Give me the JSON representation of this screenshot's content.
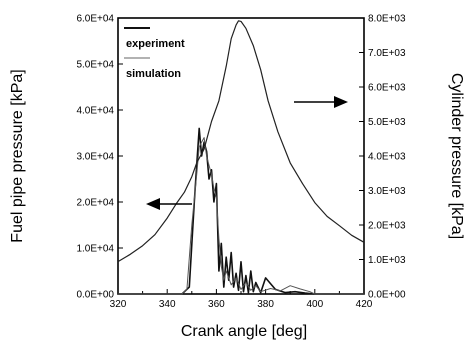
{
  "chart_data": {
    "type": "line",
    "xlabel": "Crank angle [deg]",
    "ylabel_left": "Fuel pipe pressure [kPa]",
    "ylabel_right": "Cylinder pressure [kPa]",
    "xlim": [
      320,
      420
    ],
    "ylim_left": [
      0,
      60000
    ],
    "ylim_right": [
      0,
      8000
    ],
    "x_ticks": [
      "320",
      "340",
      "360",
      "380",
      "400",
      "420"
    ],
    "y_ticks_left": [
      "0.0E+00",
      "1.0E+04",
      "2.0E+04",
      "3.0E+04",
      "4.0E+04",
      "5.0E+04",
      "6.0E+04"
    ],
    "y_ticks_right": [
      "0.0E+00",
      "1.0E+03",
      "2.0E+03",
      "3.0E+03",
      "4.0E+03",
      "5.0E+03",
      "6.0E+03",
      "7.0E+03",
      "8.0E+03"
    ],
    "grid": false,
    "legend_position": "top-left",
    "legend": [
      "experiment",
      "simulation"
    ],
    "series": [
      {
        "name": "experiment",
        "axis": "left",
        "x": [
          320,
          346,
          349,
          351,
          352,
          353,
          354,
          355,
          356,
          357,
          358,
          359,
          360,
          361,
          362,
          363,
          364,
          365,
          366,
          367,
          368,
          369,
          370,
          371,
          372,
          373,
          374,
          375,
          376,
          378,
          380,
          384,
          388,
          392,
          396,
          400,
          420
        ],
        "y": [
          0,
          0,
          1500,
          20000,
          28000,
          36000,
          30000,
          33000,
          31000,
          25000,
          27000,
          20000,
          24000,
          5000,
          11000,
          1500,
          8000,
          3000,
          9000,
          1500,
          4500,
          800,
          7000,
          500,
          4000,
          300,
          5000,
          500,
          2500,
          300,
          3500,
          1000,
          300,
          500,
          200,
          0,
          0
        ]
      },
      {
        "name": "simulation",
        "axis": "left",
        "x": [
          320,
          346,
          348,
          350,
          352,
          353,
          354,
          355,
          356,
          357,
          358,
          359,
          360,
          361,
          362,
          363,
          364,
          366,
          368,
          370,
          372,
          374,
          376,
          378,
          382,
          386,
          390,
          394,
          398,
          400,
          420
        ],
        "y": [
          0,
          0,
          1000,
          15000,
          26000,
          32000,
          33000,
          34000,
          30000,
          28000,
          26000,
          23000,
          21000,
          12000,
          6000,
          3000,
          5000,
          2000,
          3500,
          1000,
          2500,
          800,
          1800,
          500,
          1200,
          700,
          1800,
          1100,
          500,
          0,
          0
        ]
      },
      {
        "name": "cylinder pressure",
        "axis": "right",
        "x": [
          320,
          325,
          330,
          335,
          340,
          344,
          347,
          350,
          352,
          355,
          358,
          361,
          364,
          366,
          368,
          369,
          370,
          372,
          375,
          378,
          381,
          385,
          390,
          395,
          400,
          405,
          410,
          415,
          420
        ],
        "y": [
          940,
          1150,
          1400,
          1720,
          2200,
          2650,
          2950,
          3400,
          3800,
          4200,
          5000,
          5600,
          6600,
          7400,
          7800,
          7920,
          7900,
          7700,
          7200,
          6500,
          5600,
          4700,
          3800,
          3200,
          2650,
          2250,
          1980,
          1700,
          1500
        ]
      }
    ],
    "annotations": [
      {
        "type": "arrow",
        "direction": "left",
        "target_axis": "left",
        "points_to": "Fuel pipe pressure [kPa]"
      },
      {
        "type": "arrow",
        "direction": "right",
        "target_axis": "right",
        "points_to": "Cylinder pressure [kPa]"
      }
    ]
  }
}
